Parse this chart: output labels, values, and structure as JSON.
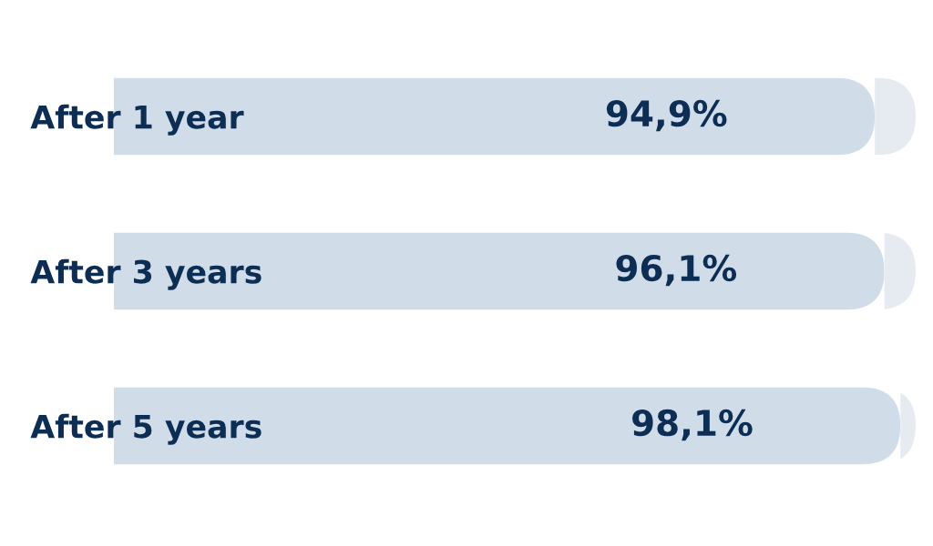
{
  "chart_data": {
    "type": "bar",
    "orientation": "horizontal",
    "stacked": true,
    "categories": [
      "After 1 year",
      "After 3 years",
      "After 5 years"
    ],
    "series": [
      {
        "color": "#d0dde9",
        "values": [
          94.9,
          96.1,
          98.1
        ],
        "value_labels": [
          "94,9%",
          "96,1%",
          "98,1%"
        ]
      },
      {
        "color": "#e6ebf1",
        "values": [
          5.1,
          3.9,
          1.9
        ]
      }
    ],
    "tick_labels": "y"
  }
}
